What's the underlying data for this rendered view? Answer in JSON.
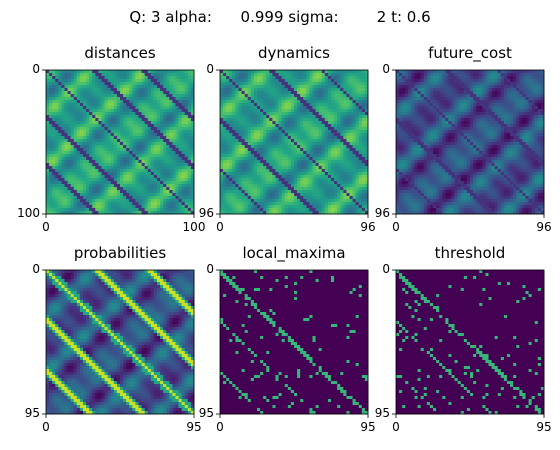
{
  "suptitle": "Q: 3 alpha:      0.999 sigma:        2 t: 0.6",
  "colormap": "viridis",
  "chart_data": [
    {
      "type": "heatmap",
      "title": "distances",
      "size": 100,
      "xticks": [
        "0",
        "100"
      ],
      "yticks": [
        "0",
        "100"
      ],
      "pattern": "smooth-blocks",
      "diagonal_offsets": [
        0,
        33,
        66
      ],
      "diagonal_value": "low",
      "value_range": "mid-to-high"
    },
    {
      "type": "heatmap",
      "title": "dynamics",
      "size": 96,
      "xticks": [
        "0",
        "96"
      ],
      "yticks": [
        "0",
        "96"
      ],
      "pattern": "smooth-blocks",
      "diagonal_offsets": [
        0,
        33,
        66
      ],
      "diagonal_value": "low",
      "value_range": "mid-to-high"
    },
    {
      "type": "heatmap",
      "title": "future_cost",
      "size": 96,
      "xticks": [
        "0",
        "96"
      ],
      "yticks": [
        "0",
        "96"
      ],
      "pattern": "smooth-blocks",
      "diagonal_offsets": [
        0,
        33,
        66
      ],
      "diagonal_value": "low",
      "value_range": "low-to-mid"
    },
    {
      "type": "heatmap",
      "title": "probabilities",
      "size": 95,
      "xticks": [
        "0",
        "95"
      ],
      "yticks": [
        "0",
        "95"
      ],
      "pattern": "smooth-blocks",
      "diagonal_offsets": [
        0,
        33,
        66
      ],
      "diagonal_value": "high",
      "value_range": "low-to-mid"
    },
    {
      "type": "heatmap",
      "title": "local_maxima",
      "size": 95,
      "xticks": [
        "0",
        "95"
      ],
      "yticks": [
        "0",
        "95"
      ],
      "pattern": "sparse-binary",
      "diagonal_offsets": [
        1,
        34,
        67
      ],
      "diagonal_value": "high",
      "value_range": "binary"
    },
    {
      "type": "heatmap",
      "title": "threshold",
      "size": 95,
      "xticks": [
        "0",
        "95"
      ],
      "yticks": [
        "0",
        "95"
      ],
      "pattern": "sparse-binary",
      "diagonal_offsets": [
        1,
        34,
        67
      ],
      "diagonal_value": "high",
      "value_range": "binary"
    }
  ]
}
